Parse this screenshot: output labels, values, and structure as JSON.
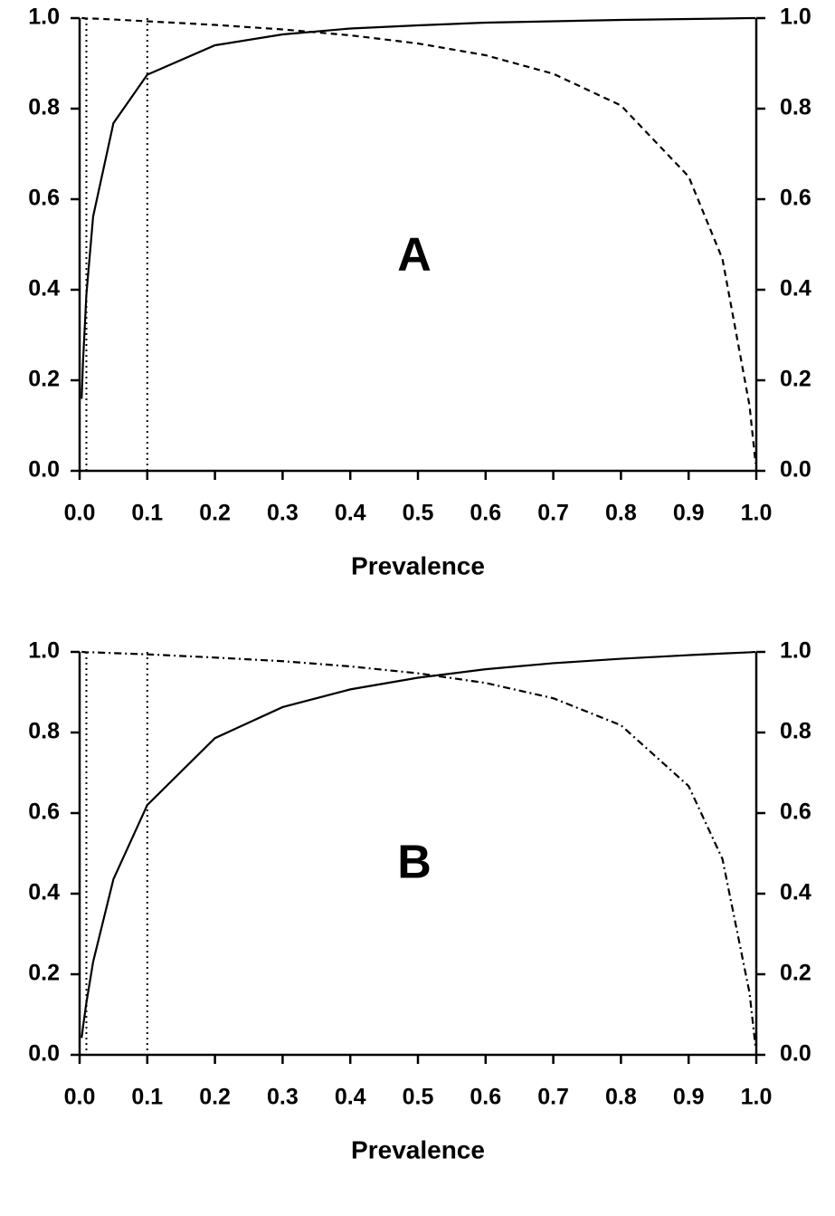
{
  "chart_data": [
    {
      "type": "line",
      "label": "A",
      "x_label": "Prevalence",
      "x": [
        0.003,
        0.005,
        0.01,
        0.02,
        0.05,
        0.1,
        0.2,
        0.3,
        0.4,
        0.5,
        0.6,
        0.7,
        0.8,
        0.9,
        0.95,
        0.99,
        0.999
      ],
      "series": [
        {
          "color": "#000000",
          "dash": "solid",
          "values": [
            0.159,
            0.24,
            0.389,
            0.562,
            0.768,
            0.875,
            0.94,
            0.964,
            0.977,
            0.984,
            0.99,
            0.993,
            0.996,
            0.998,
            0.999,
            1.0,
            1.0
          ]
        },
        {
          "color": "#000000",
          "dash": "dashed",
          "axis": "y2",
          "values": [
            1.0,
            1.0,
            0.999,
            0.999,
            0.997,
            0.993,
            0.985,
            0.975,
            0.962,
            0.944,
            0.918,
            0.877,
            0.807,
            0.65,
            0.468,
            0.144,
            0.016
          ]
        }
      ],
      "vlines": [
        0.01,
        0.1
      ],
      "xlim": [
        0,
        1
      ],
      "ylim": [
        0,
        1
      ],
      "y2lim": [
        0,
        1
      ],
      "xticks": [
        {
          "value": 0,
          "label": "0.0"
        },
        0.1,
        0.2,
        0.3,
        0.4,
        0.5,
        0.6,
        0.7,
        0.8,
        0.9,
        {
          "value": 1,
          "label": "1.0"
        }
      ],
      "yticks": [
        {
          "value": 0,
          "label": "0.0"
        },
        0.2,
        0.4,
        0.6,
        0.8,
        {
          "value": 1,
          "label": "1.0"
        }
      ],
      "y2ticks": [
        {
          "value": 0,
          "label": "0.0"
        },
        0.2,
        0.4,
        0.6,
        0.8,
        {
          "value": 1,
          "label": "1.0"
        }
      ]
    },
    {
      "type": "line",
      "label": "B",
      "x_label": "Prevalence",
      "x": [
        0.003,
        0.005,
        0.01,
        0.02,
        0.05,
        0.1,
        0.2,
        0.3,
        0.4,
        0.5,
        0.6,
        0.7,
        0.8,
        0.9,
        0.95,
        0.99,
        0.999
      ],
      "series": [
        {
          "color": "#000000",
          "dash": "solid",
          "values": [
            0.042,
            0.069,
            0.129,
            0.231,
            0.436,
            0.62,
            0.786,
            0.863,
            0.907,
            0.936,
            0.957,
            0.972,
            0.983,
            0.992,
            0.996,
            0.999,
            1.0
          ]
        },
        {
          "color": "#000000",
          "dash": "dashdot",
          "axis": "y2",
          "values": [
            1.0,
            1.0,
            0.999,
            0.999,
            0.997,
            0.994,
            0.986,
            0.977,
            0.964,
            0.947,
            0.923,
            0.885,
            0.818,
            0.667,
            0.486,
            0.154,
            0.018
          ]
        }
      ],
      "vlines": [
        0.01,
        0.1
      ],
      "xlim": [
        0,
        1
      ],
      "ylim": [
        0,
        1
      ],
      "y2lim": [
        0,
        1
      ],
      "xticks": [
        {
          "value": 0,
          "label": "0.0"
        },
        0.1,
        0.2,
        0.3,
        0.4,
        0.5,
        0.6,
        0.7,
        0.8,
        0.9,
        {
          "value": 1,
          "label": "1.0"
        }
      ],
      "yticks": [
        {
          "value": 0,
          "label": "0.0"
        },
        0.2,
        0.4,
        0.6,
        0.8,
        {
          "value": 1,
          "label": "1.0"
        }
      ],
      "y2ticks": [
        {
          "value": 0,
          "label": "0.0"
        },
        0.2,
        0.4,
        0.6,
        0.8,
        {
          "value": 1,
          "label": "1.0"
        }
      ]
    }
  ]
}
